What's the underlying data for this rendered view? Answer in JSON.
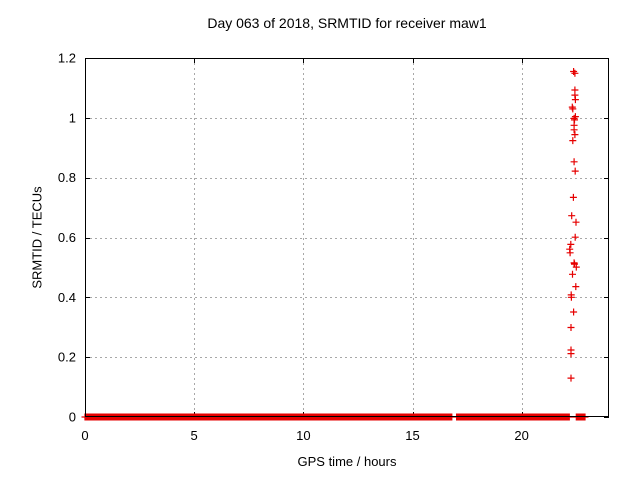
{
  "window": {
    "background": "#ffffff"
  },
  "chart_data": {
    "type": "scatter",
    "title": "Day 063 of 2018, SRMTID for receiver maw1",
    "xlabel": "GPS time / hours",
    "ylabel": "SRMTID / TECUs",
    "xlim": [
      0,
      24
    ],
    "ylim": [
      0,
      1.2
    ],
    "x_ticks": [
      0,
      5,
      10,
      15,
      20
    ],
    "x_tick_labels": [
      "0",
      "5",
      "10",
      "15",
      "20"
    ],
    "y_ticks": [
      0,
      0.2,
      0.4,
      0.6,
      0.8,
      1.0,
      1.2
    ],
    "y_tick_labels": [
      "0",
      "0.2",
      "0.4",
      "0.6",
      "0.8",
      "1",
      "1.2"
    ],
    "grid": "dashed",
    "grid_color": "#a8a8a8",
    "axis_color": "#000000",
    "legend": "none",
    "marker": "plus",
    "marker_color": "#e60000",
    "marker_size_px": 7,
    "series": [
      {
        "name": "baseline-zero",
        "description": "dense plus markers along y=0",
        "value": 0,
        "segments_hours": [
          [
            0.0,
            16.82
          ],
          [
            17.02,
            22.18
          ],
          [
            22.5,
            22.92
          ]
        ]
      },
      {
        "name": "tid-events",
        "description": "scattered plus markers near 22.2-22.5 h",
        "points": [
          [
            22.38,
            1.155
          ],
          [
            22.44,
            1.149
          ],
          [
            22.44,
            1.093
          ],
          [
            22.44,
            1.076
          ],
          [
            22.46,
            1.061
          ],
          [
            22.32,
            1.036
          ],
          [
            22.34,
            1.03
          ],
          [
            22.46,
            1.004
          ],
          [
            22.4,
            0.998
          ],
          [
            22.42,
            0.993
          ],
          [
            22.4,
            0.975
          ],
          [
            22.4,
            0.96
          ],
          [
            22.44,
            0.944
          ],
          [
            22.34,
            0.924
          ],
          [
            22.4,
            0.853
          ],
          [
            22.45,
            0.822
          ],
          [
            22.37,
            0.734
          ],
          [
            22.29,
            0.673
          ],
          [
            22.49,
            0.651
          ],
          [
            22.45,
            0.601
          ],
          [
            22.25,
            0.577
          ],
          [
            22.2,
            0.561
          ],
          [
            22.22,
            0.549
          ],
          [
            22.4,
            0.515
          ],
          [
            22.42,
            0.511
          ],
          [
            22.5,
            0.501
          ],
          [
            22.33,
            0.477
          ],
          [
            22.48,
            0.436
          ],
          [
            22.27,
            0.408
          ],
          [
            22.28,
            0.4
          ],
          [
            22.38,
            0.351
          ],
          [
            22.26,
            0.299
          ],
          [
            22.26,
            0.224
          ],
          [
            22.26,
            0.212
          ],
          [
            22.26,
            0.13
          ]
        ]
      }
    ]
  }
}
